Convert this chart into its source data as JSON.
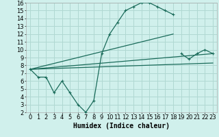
{
  "bg_color": "#d0f0ec",
  "grid_color": "#b0d8d2",
  "line_color": "#1a6b5a",
  "xlabel": "Humidex (Indice chaleur)",
  "xlim": [
    -0.5,
    23.5
  ],
  "ylim": [
    2,
    16
  ],
  "xticks": [
    0,
    1,
    2,
    3,
    4,
    5,
    6,
    7,
    8,
    9,
    10,
    11,
    12,
    13,
    14,
    15,
    16,
    17,
    18,
    19,
    20,
    21,
    22,
    23
  ],
  "yticks": [
    2,
    3,
    4,
    5,
    6,
    7,
    8,
    9,
    10,
    11,
    12,
    13,
    14,
    15,
    16
  ],
  "curve1_x": [
    0,
    1,
    2,
    3,
    4,
    5,
    6,
    7,
    8,
    9,
    10,
    11,
    12,
    13,
    14,
    15,
    16,
    17,
    18
  ],
  "curve1_y": [
    7.5,
    6.5,
    6.5,
    4.5,
    6.0,
    4.5,
    3.0,
    2.0,
    3.5,
    9.5,
    12.0,
    13.5,
    15.0,
    15.5,
    16.0,
    16.0,
    15.5,
    15.0,
    14.5
  ],
  "line1_x": [
    0,
    18
  ],
  "line1_y": [
    7.5,
    12.0
  ],
  "line2_x": [
    0,
    23
  ],
  "line2_y": [
    7.5,
    9.5
  ],
  "line3_x": [
    0,
    23
  ],
  "line3_y": [
    7.5,
    8.3
  ],
  "extra_x": [
    19,
    20,
    21,
    22,
    23
  ],
  "extra_y": [
    9.5,
    8.8,
    9.5,
    10.0,
    9.5
  ],
  "fontsize_label": 7,
  "fontsize_tick": 6,
  "marker": "+"
}
